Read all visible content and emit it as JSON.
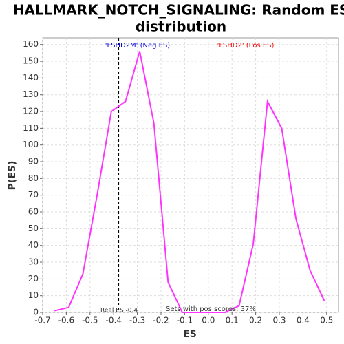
{
  "chart_data": {
    "type": "line",
    "title": "HALLMARK_NOTCH_SIGNALING: Random ES",
    "title_line2": "distribution",
    "x_label": "ES",
    "y_label": "P(ES)",
    "x": [
      -0.65,
      -0.59,
      -0.53,
      -0.47,
      -0.41,
      -0.35,
      -0.29,
      -0.23,
      -0.17,
      -0.11,
      -0.05,
      0.01,
      0.07,
      0.13,
      0.19,
      0.25,
      0.31,
      0.37,
      0.43,
      0.49
    ],
    "series": [
      {
        "name": "P(ES)",
        "color": "#ff33ff",
        "values": [
          1,
          3,
          23,
          70,
          120,
          126,
          156,
          113,
          18,
          0,
          0,
          0,
          0,
          4,
          41,
          126,
          110,
          56,
          25,
          7
        ]
      }
    ],
    "xlim": [
      -0.7,
      0.55
    ],
    "ylim": [
      0,
      164
    ],
    "xticks": [
      -0.7,
      -0.6,
      -0.5,
      -0.4,
      -0.3,
      -0.2,
      -0.1,
      {
        "value": 0,
        "label": "0.0"
      },
      0.1,
      0.2,
      0.3,
      0.4,
      0.5
    ],
    "yticks": [
      0,
      10,
      20,
      30,
      40,
      50,
      60,
      70,
      80,
      90,
      100,
      110,
      120,
      130,
      140,
      150,
      160
    ],
    "grid": true,
    "real_es_line": -0.38,
    "annotations": {
      "neg": "'FSHD2M' (Neg ES)",
      "pos": "'FSHD2' (Pos ES)",
      "real_es": "Real ES -0.4",
      "pos_scores": "Sets with pos scores: 37%"
    }
  }
}
